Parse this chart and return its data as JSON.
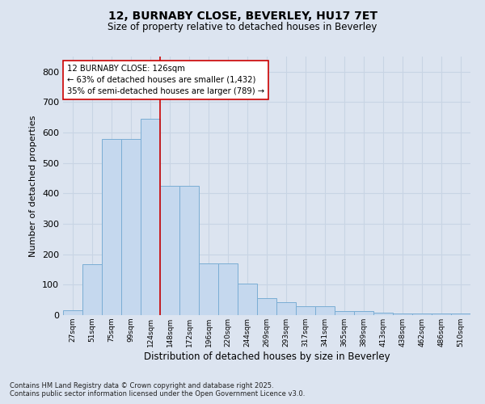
{
  "title_line1": "12, BURNABY CLOSE, BEVERLEY, HU17 7ET",
  "title_line2": "Size of property relative to detached houses in Beverley",
  "xlabel": "Distribution of detached houses by size in Beverley",
  "ylabel": "Number of detached properties",
  "categories": [
    "27sqm",
    "51sqm",
    "75sqm",
    "99sqm",
    "124sqm",
    "148sqm",
    "172sqm",
    "196sqm",
    "220sqm",
    "244sqm",
    "269sqm",
    "293sqm",
    "317sqm",
    "341sqm",
    "365sqm",
    "389sqm",
    "413sqm",
    "438sqm",
    "462sqm",
    "486sqm",
    "510sqm"
  ],
  "values": [
    15,
    168,
    580,
    580,
    645,
    425,
    425,
    170,
    170,
    103,
    55,
    42,
    30,
    30,
    13,
    13,
    8,
    6,
    5,
    5,
    5
  ],
  "bar_color": "#c5d8ee",
  "bar_edge_color": "#7aadd4",
  "grid_color": "#c8d4e4",
  "bg_color": "#dce4f0",
  "vline_x": 4.5,
  "vline_color": "#cc0000",
  "annotation_text": "12 BURNABY CLOSE: 126sqm\n← 63% of detached houses are smaller (1,432)\n35% of semi-detached houses are larger (789) →",
  "annotation_box_color": "white",
  "annotation_box_edge": "#cc0000",
  "ylim": [
    0,
    850
  ],
  "yticks": [
    0,
    100,
    200,
    300,
    400,
    500,
    600,
    700,
    800
  ],
  "footer_line1": "Contains HM Land Registry data © Crown copyright and database right 2025.",
  "footer_line2": "Contains public sector information licensed under the Open Government Licence v3.0."
}
